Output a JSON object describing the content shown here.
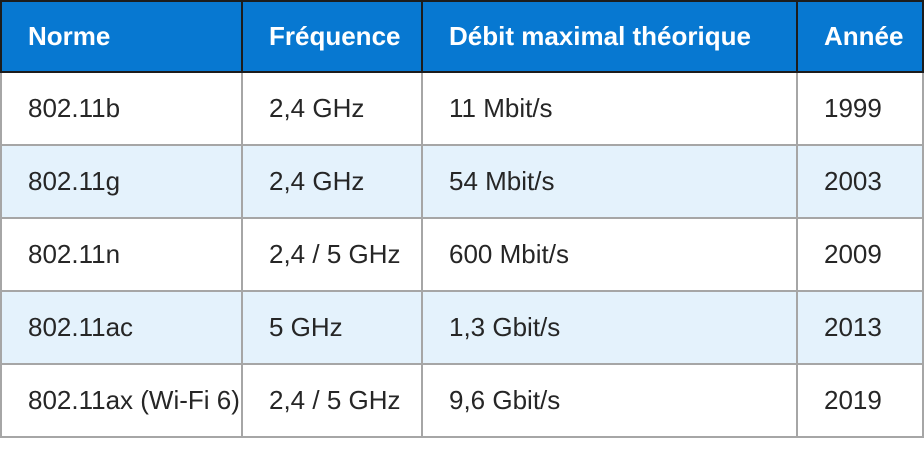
{
  "chart_data": {
    "type": "table",
    "columns": [
      "Norme",
      "Fréquence",
      "Débit maximal théorique",
      "Année"
    ],
    "rows": [
      [
        "802.11b",
        "2,4 GHz",
        "11 Mbit/s",
        "1999"
      ],
      [
        "802.11g",
        "2,4 GHz",
        "54 Mbit/s",
        "2003"
      ],
      [
        "802.11n",
        "2,4 / 5 GHz",
        "600 Mbit/s",
        "2009"
      ],
      [
        "802.11ac",
        "5 GHz",
        "1,3 Gbit/s",
        "2013"
      ],
      [
        "802.11ax (Wi-Fi 6)",
        "2,4 / 5 GHz",
        "9,6 Gbit/s",
        "2019"
      ]
    ],
    "legend_position": "none",
    "grid": true
  },
  "colors": {
    "header_bg": "#0778d1",
    "header_text": "#ffffff",
    "header_border": "#1c1c1c",
    "row_bg": "#ffffff",
    "row_alt_bg": "#e4f2fc",
    "body_border": "#a6a6a6",
    "body_text": "#262626"
  }
}
